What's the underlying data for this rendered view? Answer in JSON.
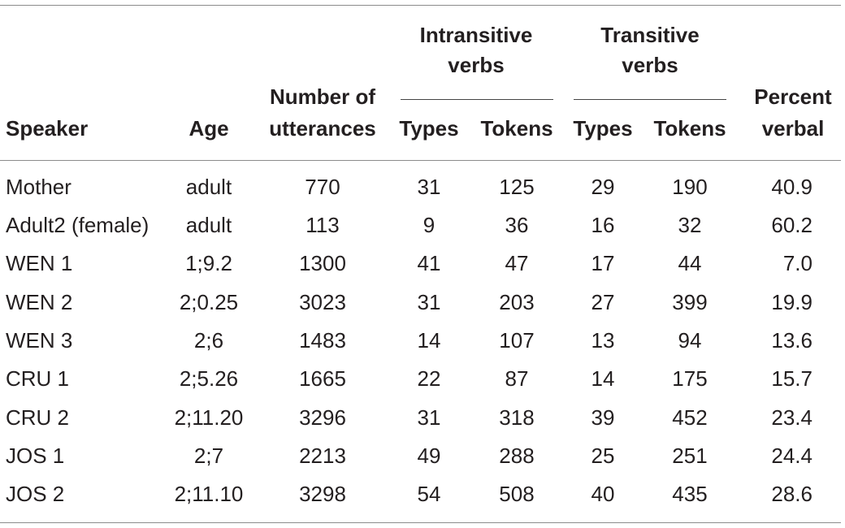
{
  "headers": {
    "speaker": "Speaker",
    "age": "Age",
    "number_of_utterances": [
      "Number of",
      "utterances"
    ],
    "intransitive_verbs": [
      "Intransitive",
      "verbs"
    ],
    "transitive_verbs": [
      "Transitive",
      "verbs"
    ],
    "percent_verbal": [
      "Percent",
      "verbal"
    ],
    "types": "Types",
    "tokens": "Tokens"
  },
  "rows": [
    {
      "speaker": "Mother",
      "age": "adult",
      "utterances": "770",
      "intr_types": "31",
      "intr_tokens": "125",
      "tr_types": "29",
      "tr_tokens": "190",
      "percent_verbal": "40.9"
    },
    {
      "speaker": "Adult2 (female)",
      "age": "adult",
      "utterances": "113",
      "intr_types": "9",
      "intr_tokens": "36",
      "tr_types": "16",
      "tr_tokens": "32",
      "percent_verbal": "60.2"
    },
    {
      "speaker": "WEN 1",
      "age": "1;9.2",
      "utterances": "1300",
      "intr_types": "41",
      "intr_tokens": "47",
      "tr_types": "17",
      "tr_tokens": "44",
      "percent_verbal": "7.0"
    },
    {
      "speaker": "WEN 2",
      "age": "2;0.25",
      "utterances": "3023",
      "intr_types": "31",
      "intr_tokens": "203",
      "tr_types": "27",
      "tr_tokens": "399",
      "percent_verbal": "19.9"
    },
    {
      "speaker": "WEN 3",
      "age": "2;6",
      "utterances": "1483",
      "intr_types": "14",
      "intr_tokens": "107",
      "tr_types": "13",
      "tr_tokens": "94",
      "percent_verbal": "13.6"
    },
    {
      "speaker": "CRU 1",
      "age": "2;5.26",
      "utterances": "1665",
      "intr_types": "22",
      "intr_tokens": "87",
      "tr_types": "14",
      "tr_tokens": "175",
      "percent_verbal": "15.7"
    },
    {
      "speaker": "CRU 2",
      "age": "2;11.20",
      "utterances": "3296",
      "intr_types": "31",
      "intr_tokens": "318",
      "tr_types": "39",
      "tr_tokens": "452",
      "percent_verbal": "23.4"
    },
    {
      "speaker": "JOS 1",
      "age": "2;7",
      "utterances": "2213",
      "intr_types": "49",
      "intr_tokens": "288",
      "tr_types": "25",
      "tr_tokens": "251",
      "percent_verbal": "24.4"
    },
    {
      "speaker": "JOS 2",
      "age": "2;11.10",
      "utterances": "3298",
      "intr_types": "54",
      "intr_tokens": "508",
      "tr_types": "40",
      "tr_tokens": "435",
      "percent_verbal": "28.6"
    }
  ]
}
